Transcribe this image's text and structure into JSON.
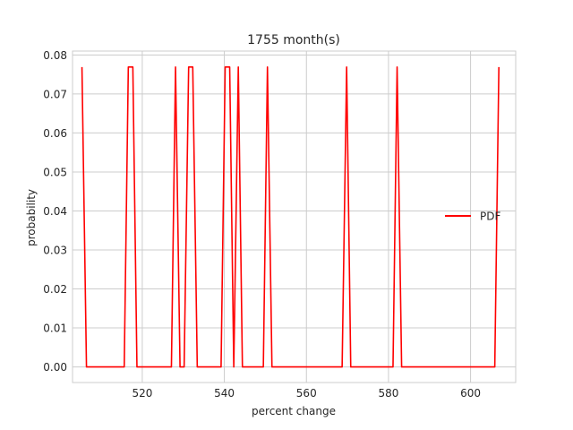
{
  "chart_data": {
    "type": "line",
    "title": "1755 month(s)",
    "xlabel": "percent change",
    "ylabel": "probability",
    "xlim": [
      503,
      611
    ],
    "ylim": [
      -0.004,
      0.081
    ],
    "xticks": [
      520,
      540,
      560,
      580,
      600
    ],
    "yticks": [
      0.0,
      0.01,
      0.02,
      0.03,
      0.04,
      0.05,
      0.06,
      0.07,
      0.08
    ],
    "ytick_labels": [
      "0.00",
      "0.01",
      "0.02",
      "0.03",
      "0.04",
      "0.05",
      "0.06",
      "0.07",
      "0.08"
    ],
    "grid": true,
    "legend_position": "center-right",
    "series": [
      {
        "name": "PDF",
        "color": "#ff0000",
        "x": [
          505.3,
          506.4,
          515.6,
          516.6,
          517.7,
          518.7,
          527.1,
          528.1,
          529.2,
          530.2,
          531.3,
          532.3,
          533.4,
          539.2,
          540.2,
          541.3,
          542.3,
          543.4,
          544.4,
          549.5,
          550.5,
          551.6,
          568.7,
          569.8,
          570.8,
          581.1,
          582.1,
          583.2,
          605.9,
          606.9
        ],
        "y": [
          0.0769,
          0.0,
          0.0,
          0.0769,
          0.0769,
          0.0,
          0.0,
          0.0769,
          0.0,
          0.0,
          0.0769,
          0.0769,
          0.0,
          0.0,
          0.0769,
          0.0769,
          0.0,
          0.0769,
          0.0,
          0.0,
          0.0769,
          0.0,
          0.0,
          0.0769,
          0.0,
          0.0,
          0.0769,
          0.0,
          0.0,
          0.0769
        ]
      }
    ]
  }
}
